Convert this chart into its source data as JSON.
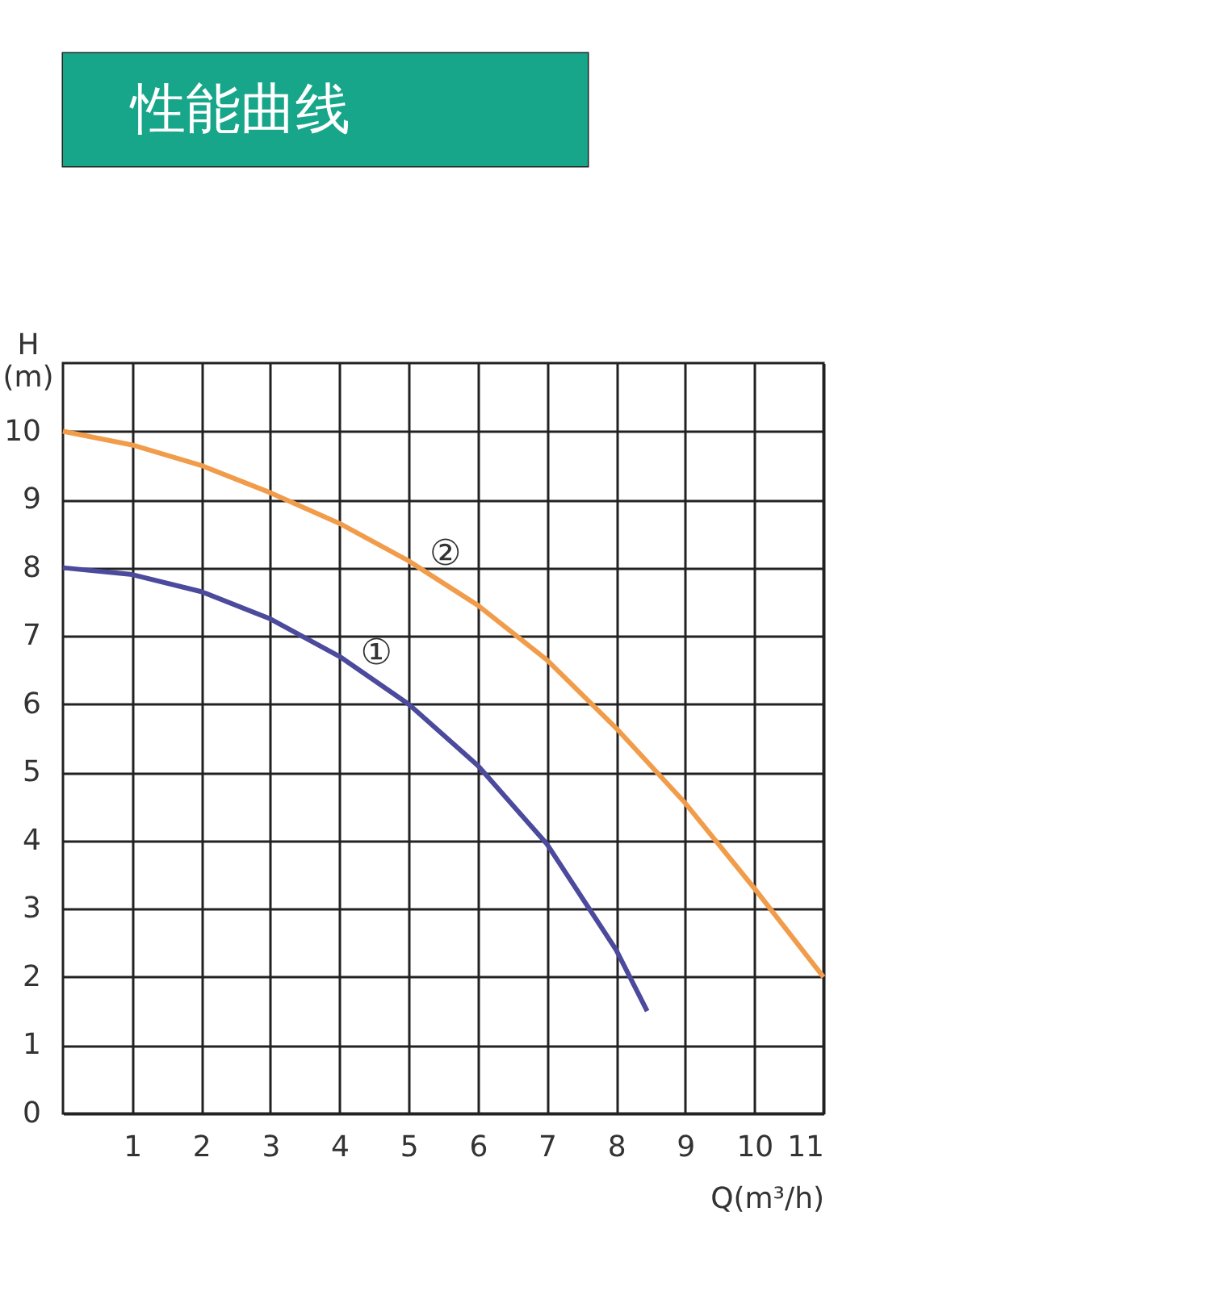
{
  "chart_data": {
    "type": "line",
    "title": "性能曲线",
    "xlabel": "Q(m³/h)",
    "ylabel": "H (m)",
    "series": [
      {
        "name": "①",
        "color": "#4b4a9c",
        "x": [
          0,
          1,
          2,
          3,
          4,
          5,
          6,
          7,
          8,
          8.45
        ],
        "values": [
          8,
          7.9,
          7.65,
          7.25,
          6.7,
          6.0,
          5.1,
          3.95,
          2.4,
          1.5
        ]
      },
      {
        "name": "②",
        "color": "#f19c4a",
        "x": [
          0,
          1,
          2,
          3,
          4,
          5,
          6,
          7,
          8,
          9,
          10,
          11
        ],
        "values": [
          10,
          9.8,
          9.5,
          9.1,
          8.65,
          8.1,
          7.45,
          6.65,
          5.65,
          4.55,
          3.3,
          2.0
        ]
      }
    ],
    "xlim": [
      0,
      11
    ],
    "ylim": [
      0,
      11
    ],
    "xticks": [
      1,
      2,
      3,
      4,
      5,
      6,
      7,
      8,
      9,
      10,
      11
    ],
    "yticks": [
      0,
      1,
      2,
      3,
      4,
      5,
      6,
      7,
      8,
      9,
      10
    ],
    "grid": true,
    "legend": false,
    "marker": "none",
    "line_style": "solid"
  }
}
